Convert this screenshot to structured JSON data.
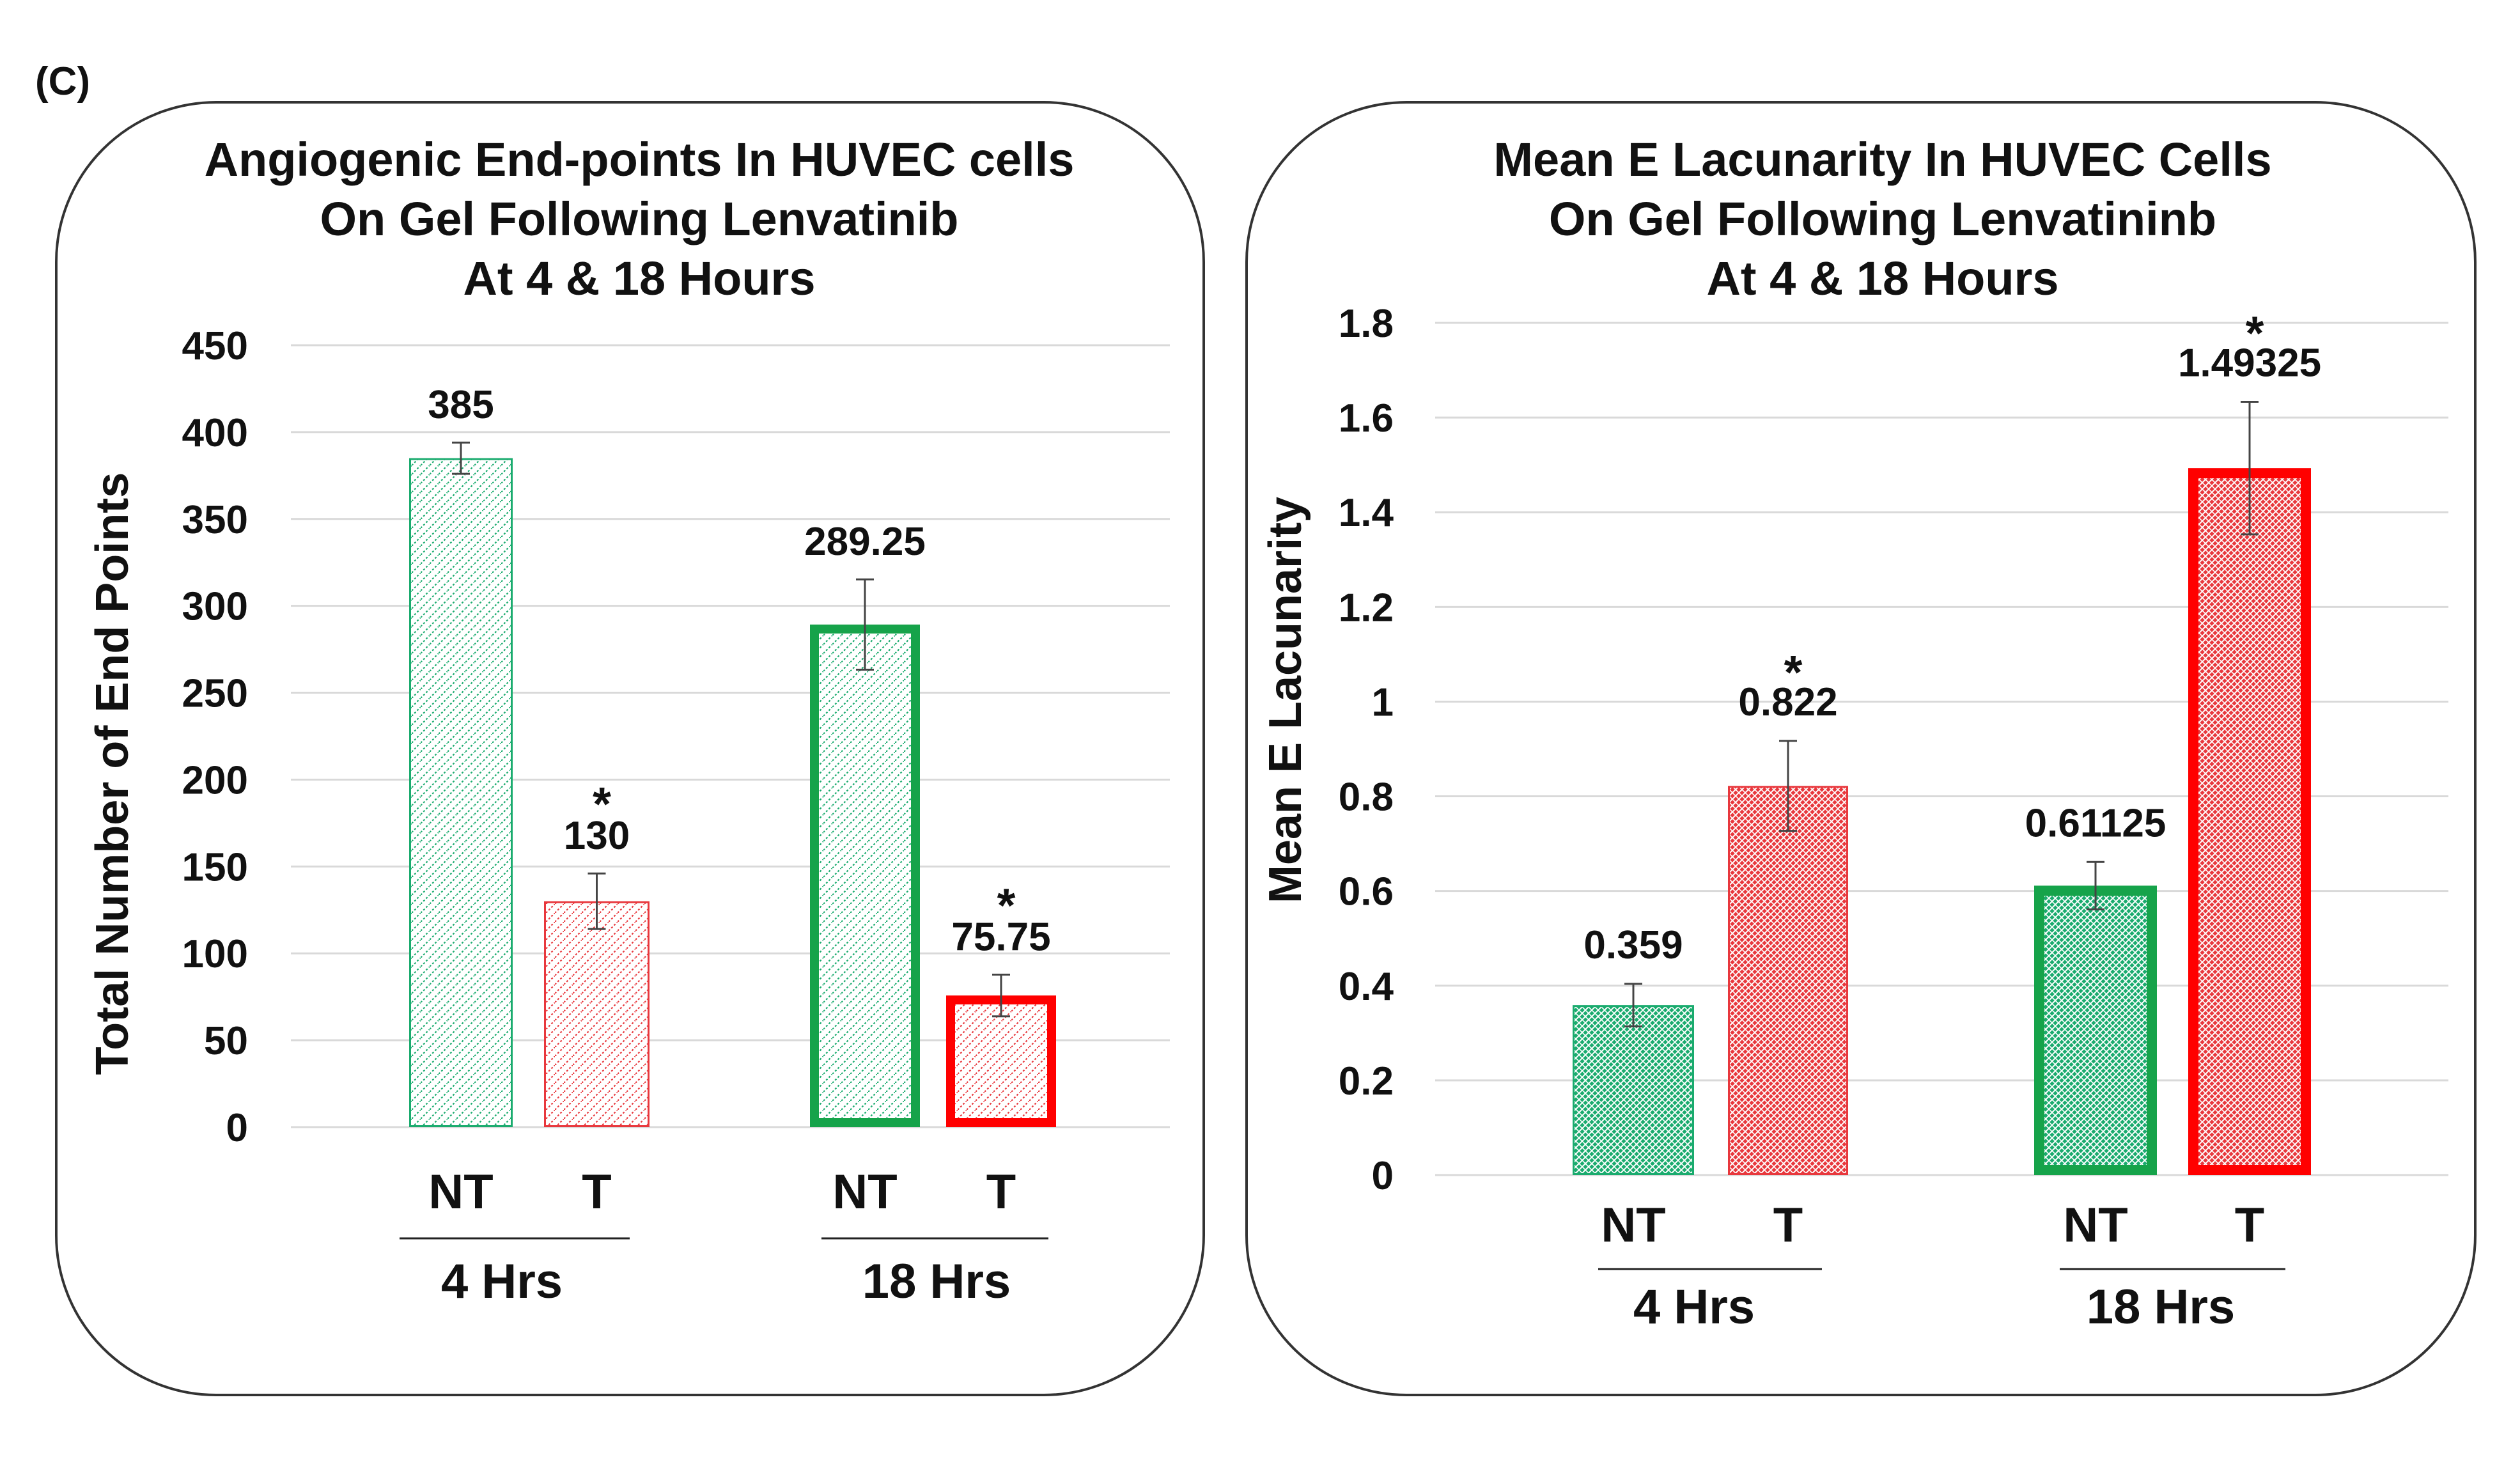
{
  "panel_label": "(C)",
  "colors": {
    "nt": "#1aab6e",
    "t": "#e8383d",
    "nt_border_bold": "#16a34a",
    "t_border_bold": "#ff0000",
    "grid": "#d9d9d9",
    "frame": "#333333"
  },
  "chart_data": [
    {
      "type": "bar",
      "title_lines": [
        "Angiogenic End-points In HUVEC cells",
        "On Gel Following Lenvatinib",
        "At 4 & 18 Hours"
      ],
      "ylabel": "Total Number of End Points",
      "xlabel": "",
      "ylim": [
        0,
        450
      ],
      "yticks": [
        0,
        50,
        100,
        150,
        200,
        250,
        300,
        350,
        400,
        450
      ],
      "ytick_labels": [
        "0",
        "50",
        "100",
        "150",
        "200",
        "250",
        "300",
        "350",
        "400",
        "450"
      ],
      "grid": true,
      "groups": [
        "4 Hrs",
        "18 Hrs"
      ],
      "bars": [
        {
          "group": "4 Hrs",
          "category": "NT",
          "value": 385,
          "error": 9,
          "label": "385",
          "significant": false
        },
        {
          "group": "4 Hrs",
          "category": "T",
          "value": 130,
          "error": 16,
          "label": "130",
          "significant": true
        },
        {
          "group": "18 Hrs",
          "category": "NT",
          "value": 289.25,
          "error": 26,
          "label": "289.25",
          "significant": false
        },
        {
          "group": "18 Hrs",
          "category": "T",
          "value": 75.75,
          "error": 12,
          "label": "75.75",
          "significant": true
        }
      ],
      "significance_marker": "*"
    },
    {
      "type": "bar",
      "title_lines": [
        "Mean E Lacunarity In HUVEC Cells",
        "On Gel Following Lenvatininb",
        "At 4 & 18 Hours"
      ],
      "ylabel": "Mean E Lacunarity",
      "xlabel": "",
      "ylim": [
        0,
        1.8
      ],
      "yticks": [
        0,
        0.2,
        0.4,
        0.6,
        0.8,
        1,
        1.2,
        1.4,
        1.6,
        1.8
      ],
      "ytick_labels": [
        "0",
        "0.2",
        "0.4",
        "0.6",
        "0.8",
        "1",
        "1.2",
        "1.4",
        "1.6",
        "1.8"
      ],
      "grid": true,
      "groups": [
        "4 Hrs",
        "18 Hrs"
      ],
      "bars": [
        {
          "group": "4 Hrs",
          "category": "NT",
          "value": 0.359,
          "error": 0.045,
          "label": "0.359",
          "significant": false
        },
        {
          "group": "4 Hrs",
          "category": "T",
          "value": 0.822,
          "error": 0.095,
          "label": "0.822",
          "significant": true
        },
        {
          "group": "18 Hrs",
          "category": "NT",
          "value": 0.61125,
          "error": 0.05,
          "label": "0.61125",
          "significant": false
        },
        {
          "group": "18 Hrs",
          "category": "T",
          "value": 1.49325,
          "error": 0.14,
          "label": "1.49325",
          "significant": true
        }
      ],
      "significance_marker": "*"
    }
  ]
}
